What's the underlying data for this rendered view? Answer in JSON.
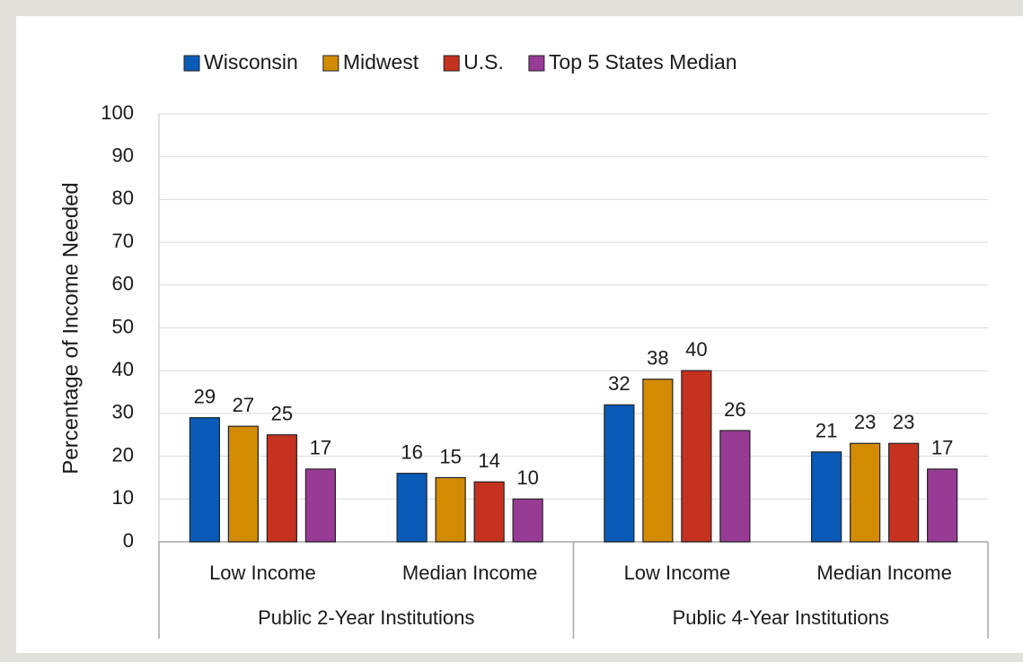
{
  "chart_data": {
    "type": "bar",
    "y_label": "Percentage of Income Needed",
    "categories": [
      "Low Income",
      "Median Income",
      "Low Income",
      "Median Income"
    ],
    "groups": [
      "Public 2-Year Institutions",
      "Public 4-Year Institutions"
    ],
    "series": [
      {
        "name": "Wisconsin",
        "color": "#0a5bb8",
        "values": [
          29,
          16,
          32,
          21
        ]
      },
      {
        "name": "Midwest",
        "color": "#d38b02",
        "values": [
          27,
          15,
          38,
          23
        ]
      },
      {
        "name": "U.S.",
        "color": "#c5321f",
        "values": [
          25,
          14,
          40,
          23
        ]
      },
      {
        "name": "Top 5 States Median",
        "color": "#983b94",
        "values": [
          17,
          10,
          26,
          17
        ]
      }
    ],
    "ylim": [
      0,
      100
    ],
    "yticks": [
      0,
      10,
      20,
      30,
      40,
      50,
      60,
      70,
      80,
      90,
      100
    ],
    "grid": true,
    "legend": "top"
  }
}
